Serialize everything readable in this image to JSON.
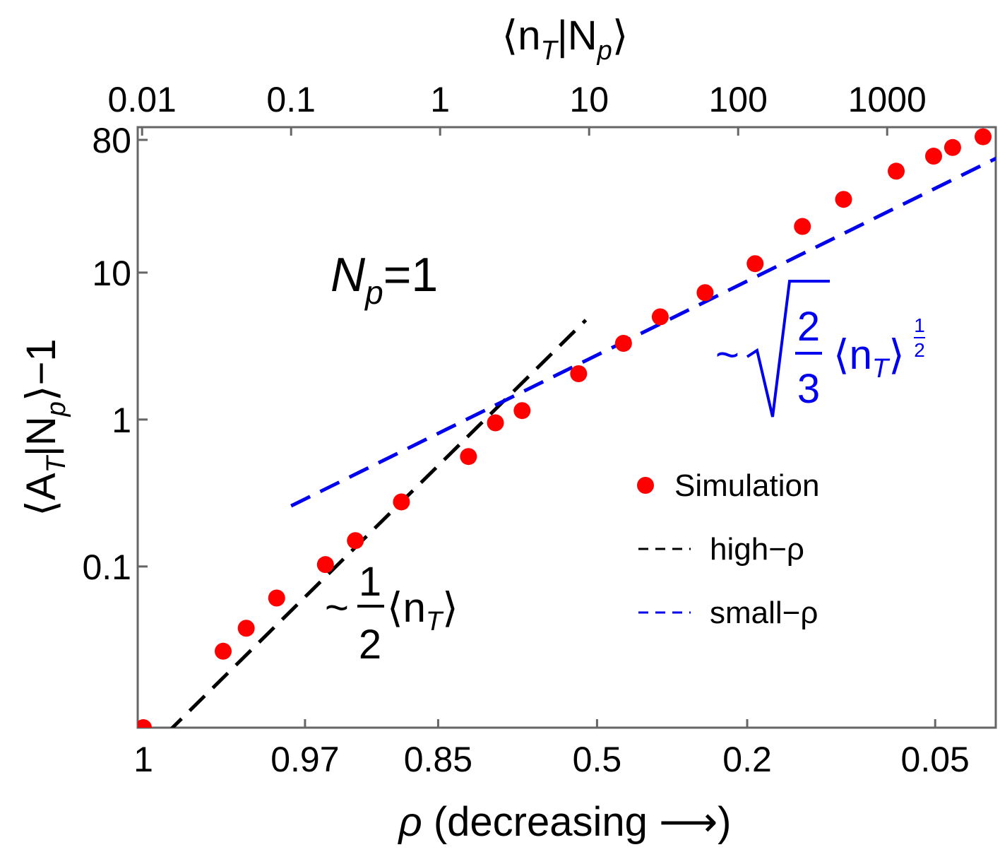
{
  "chart_data": {
    "type": "scatter",
    "title": "",
    "xlabel": "ρ (decreasing ⟶)",
    "ylabel": "⟨A_T|N_p⟩−1",
    "top_xlabel": "⟨n_T|N_p⟩",
    "xscale": "log",
    "yscale": "log",
    "xlim": [
      0.01,
      6000
    ],
    "ylim": [
      0.008,
      80
    ],
    "top_ticks": [
      {
        "value": 0.01,
        "label": "0.01"
      },
      {
        "value": 0.1,
        "label": "0.1"
      },
      {
        "value": 1,
        "label": "1"
      },
      {
        "value": 10,
        "label": "10"
      },
      {
        "value": 100,
        "label": "100"
      },
      {
        "value": 1000,
        "label": "1000"
      }
    ],
    "bottom_ticks": [
      {
        "value": 0.0102,
        "label": "1"
      },
      {
        "value": 0.124,
        "label": "0.97"
      },
      {
        "value": 0.97,
        "label": "0.85"
      },
      {
        "value": 11.3,
        "label": "0.5"
      },
      {
        "value": 115,
        "label": "0.2"
      },
      {
        "value": 2100,
        "label": "0.05"
      }
    ],
    "y_ticks": [
      {
        "value": 80,
        "label": "80"
      },
      {
        "value": 10,
        "label": "10"
      },
      {
        "value": 1,
        "label": "1"
      },
      {
        "value": 0.1,
        "label": "0.1"
      }
    ],
    "series": [
      {
        "name": "Simulation",
        "style": "points",
        "color": "#ff0000",
        "x": [
          0.0102,
          0.035,
          0.05,
          0.08,
          0.17,
          0.27,
          0.55,
          1.55,
          2.35,
          3.55,
          8.5,
          17,
          30,
          60,
          130,
          270,
          510,
          1150,
          2050,
          2750,
          4400
        ],
        "y": [
          0.008,
          0.0265,
          0.038,
          0.061,
          0.103,
          0.15,
          0.275,
          0.56,
          0.95,
          1.15,
          2.05,
          3.3,
          5.0,
          7.3,
          11.5,
          20.6,
          31.5,
          49,
          62,
          71,
          84
        ]
      },
      {
        "name": "high-ρ",
        "style": "dashed",
        "color": "#000000",
        "formula": "y = x/2",
        "x_range": [
          0.0102,
          9.5
        ]
      },
      {
        "name": "small-ρ",
        "style": "dashed",
        "color": "#0000ee",
        "formula": "y = sqrt(2/3) * x^(1/2)",
        "x_range": [
          0.1,
          6000
        ]
      }
    ],
    "legend": {
      "position": "center-right",
      "entries": [
        "Simulation",
        "high-ρ",
        "small-ρ"
      ]
    },
    "annotations": [
      {
        "id": "np",
        "text": "N_p=1",
        "color": "#000000"
      },
      {
        "id": "high",
        "text": "~ (1/2)⟨n_T⟩",
        "color": "#000000"
      },
      {
        "id": "small",
        "text": "~ sqrt(2/3) ⟨n_T⟩^(1/2)",
        "color": "#0000ee"
      }
    ]
  },
  "text": {
    "xlabel_rho": "ρ",
    "xlabel_rest": " (decreasing ⟶)",
    "ylabel_open": "⟨A",
    "ylabel_sub": "T",
    "ylabel_mid": "|N",
    "ylabel_sub2": "p",
    "ylabel_close": "⟩−1",
    "top_open": "⟨n",
    "top_sub": "T",
    "top_mid": "|N",
    "top_sub2": "p",
    "top_close": "⟩",
    "np_N": "N",
    "np_sub": "p",
    "np_rest": "=1",
    "high_tilde": "~",
    "high_num": "1",
    "high_den": "2",
    "high_open": "⟨n",
    "high_sub": "T",
    "high_close": "⟩",
    "small_tilde": "~",
    "small_num": "2",
    "small_den": "3",
    "small_open": "⟨n",
    "small_sub": "T",
    "small_close": "⟩",
    "small_exp_num": "1",
    "small_exp_den": "2",
    "legend_sim": "Simulation",
    "legend_high": "high−ρ",
    "legend_small": "small−ρ"
  }
}
